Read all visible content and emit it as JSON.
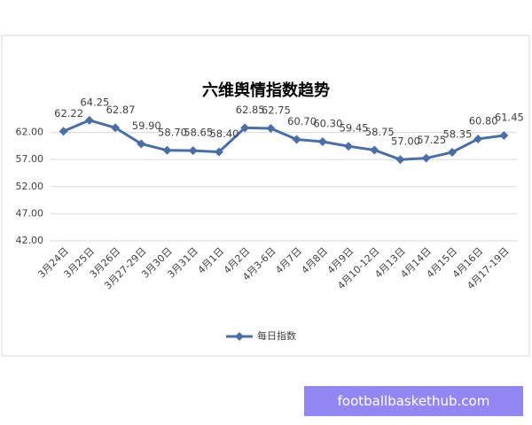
{
  "chart_data": {
    "type": "line",
    "title": "六维舆情指数趋势",
    "categories": [
      "3月24日",
      "3月25日",
      "3月26日",
      "3月27-29日",
      "3月30日",
      "3月31日",
      "4月1日",
      "4月2日",
      "4月3-6日",
      "4月7日",
      "4月8日",
      "4月9日",
      "4月10-12日",
      "4月13日",
      "4月14日",
      "4月15日",
      "4月16日",
      "4月17-19日"
    ],
    "series": [
      {
        "name": "每日指数",
        "color": "#4a6ea8",
        "values": [
          62.22,
          64.25,
          62.87,
          59.9,
          58.7,
          58.65,
          58.4,
          62.85,
          62.75,
          60.7,
          60.3,
          59.45,
          58.75,
          57.0,
          57.25,
          58.35,
          60.8,
          61.45
        ],
        "value_labels": [
          "62.22",
          "64.25",
          "62.87",
          "59.90",
          "58.70",
          "58.65",
          "58.40",
          "62.85",
          "62.75",
          "60.70",
          "60.30",
          "59.45",
          "58.75",
          "57.00",
          "57.25",
          "58.35",
          "60.80",
          "61.45"
        ]
      }
    ],
    "ylim": [
      42,
      67
    ],
    "yticks": [
      {
        "value": 42,
        "label": "42.00"
      },
      {
        "value": 47,
        "label": "47.00"
      },
      {
        "value": 52,
        "label": "52.00"
      },
      {
        "value": 57,
        "label": "57.00"
      },
      {
        "value": 62,
        "label": "62.00"
      }
    ],
    "grid": true,
    "legend": "bottom"
  },
  "watermark": "footballbaskethub.com"
}
